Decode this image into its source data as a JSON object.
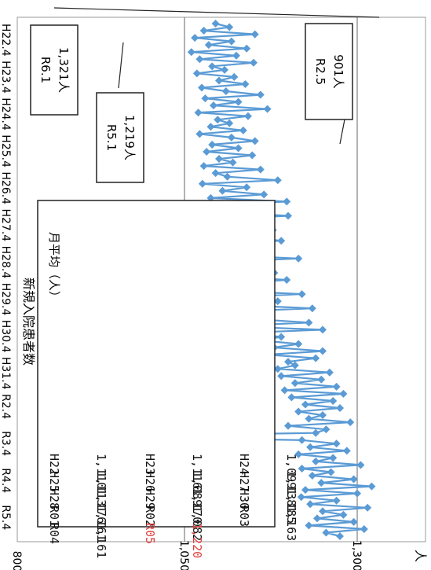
{
  "chart_data": {
    "type": "line",
    "orientation": "rotated-90-clockwise",
    "title": "新規入院患者数",
    "ylabel": "人",
    "y_ticks": [
      "800",
      "1,050",
      "1,300"
    ],
    "ylim": [
      800,
      1350
    ],
    "x_tick_labels": [
      "H22.4",
      "H23.4",
      "H24.4",
      "H25.4",
      "H26.4",
      "H27.4",
      "H28.4",
      "H29.4",
      "H30.4",
      "H31.4",
      "R2.4",
      "R3.4",
      "R4.4",
      "R5.4"
    ],
    "grid": true,
    "series_color": "#5b9bd5",
    "values": [
      1095,
      1115,
      1078,
      1152,
      1065,
      1118,
      1085,
      1140,
      1060,
      1125,
      1072,
      1150,
      1090,
      1108,
      1068,
      1122,
      1100,
      1138,
      1075,
      1110,
      1160,
      1080,
      1128,
      1092,
      1170,
      1070,
      1142,
      1098,
      1115,
      1088,
      1135,
      1072,
      1118,
      1152,
      1090,
      1128,
      1082,
      1148,
      1100,
      1120,
      1078,
      1160,
      1095,
      1112,
      1185,
      1076,
      1140,
      1105,
      1165,
      1088,
      1198,
      1094,
      1155,
      1110,
      1200,
      1090,
      1150,
      1120,
      1178,
      1098,
      1140,
      1190,
      1105,
      1132,
      1168,
      1100,
      1215,
      1095,
      1160,
      1125,
      1180,
      1108,
      1198,
      1130,
      1175,
      1112,
      1220,
      1100,
      1185,
      1120,
      1235,
      1105,
      1170,
      1150,
      1230,
      1115,
      1250,
      1120,
      1190,
      1160,
      1215,
      1180,
      1250,
      1170,
      1240,
      1200,
      1210,
      1185,
      1260,
      1190,
      1248,
      1210,
      1270,
      1195,
      1280,
      1205,
      1265,
      1225,
      1275,
      1215,
      1250,
      1230,
      1290,
      1200,
      1255,
      1240,
      901,
      1220,
      1270,
      1232,
      1285,
      1215,
      1265,
      1240,
      1305,
      1220,
      1262,
      1235,
      1295,
      1248,
      1321,
      1225,
      1300,
      1219,
      1270,
      1232,
      1315,
      1250,
      1280,
      1242,
      1295,
      1230,
      1310,
      1255,
      1275
    ],
    "callouts": [
      {
        "title": "R6.1",
        "value": "1,321人"
      },
      {
        "title": "R5.1",
        "value": "1,219人"
      },
      {
        "title": "R2.5",
        "value": "901人"
      }
    ],
    "table": {
      "title": "月平均（人）",
      "rows": [
        [
          [
            "H22",
            "1,110"
          ],
          [
            "H23",
            "1,116"
          ],
          [
            "H24",
            "1,099"
          ]
        ],
        [
          [
            "H25",
            "1,113"
          ],
          [
            "H26",
            "1,089"
          ],
          [
            "H27",
            "1,138"
          ]
        ],
        [
          [
            "H28",
            "1,176"
          ],
          [
            "H29",
            "1,170"
          ],
          [
            "H30",
            "1,185"
          ]
        ],
        [
          [
            "R01",
            "1,161"
          ],
          [
            "R02",
            "1,082"
          ],
          [
            "R03",
            "1,163"
          ]
        ],
        [
          [
            "R04",
            "1,161"
          ],
          [
            "R05",
            "1,220"
          ]
        ]
      ],
      "highlight_color": "#e03c3c",
      "highlight_row": 4,
      "highlight_col": 1
    }
  }
}
